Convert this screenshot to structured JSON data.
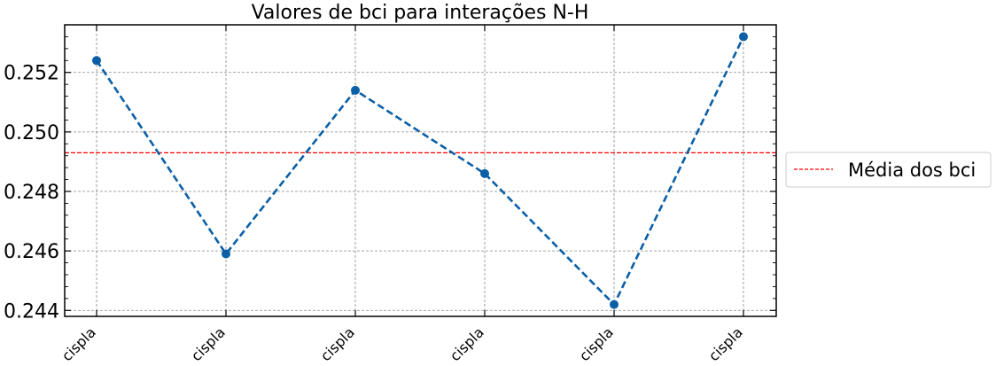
{
  "chart_data": {
    "type": "line",
    "title": "Valores de bci para interações N-H",
    "xlabel": "",
    "ylabel": "",
    "categories": [
      "cispla",
      "cispla",
      "cispla",
      "cispla",
      "cispla",
      "cispla"
    ],
    "series": [
      {
        "values": [
          0.2524,
          0.2459,
          0.2514,
          0.2486,
          0.2442,
          0.2532
        ],
        "color": "#0a5fa6",
        "line_style": "dashed",
        "marker": "circle"
      }
    ],
    "reference_line": {
      "label": "Média dos bci",
      "value": 0.2493,
      "color": "#ff0000",
      "line_style": "dashed"
    },
    "yticks": [
      "0.244",
      "0.246",
      "0.248",
      "0.250",
      "0.252"
    ],
    "ytick_values": [
      0.244,
      0.246,
      0.248,
      0.25,
      0.252
    ],
    "ylim": [
      0.2438,
      0.2536
    ],
    "grid": true,
    "legend_position": "right, outside plot"
  }
}
